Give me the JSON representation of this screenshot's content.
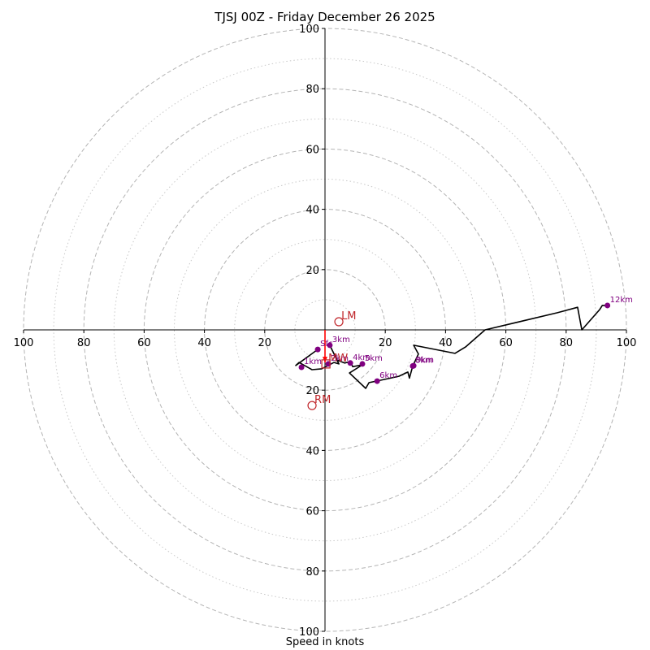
{
  "chart_data": {
    "type": "line",
    "title": "TJSJ 00Z - Friday December 26 2025",
    "xlabel": "Speed in knots",
    "ylabel": "",
    "xlim": [
      -100,
      100
    ],
    "ylim": [
      -100,
      100
    ],
    "grid": true,
    "rings_major": [
      20,
      40,
      60,
      80,
      100
    ],
    "rings_minor": [
      10,
      30,
      50,
      70,
      90
    ],
    "x_tick_labels": [
      "100",
      "80",
      "60",
      "40",
      "20",
      "20",
      "40",
      "60",
      "80",
      "100"
    ],
    "x_tick_values": [
      -100,
      -80,
      -60,
      -40,
      -20,
      20,
      40,
      60,
      80,
      100
    ],
    "y_tick_labels": [
      "100",
      "80",
      "60",
      "40",
      "20",
      "20",
      "40",
      "60",
      "80",
      "100"
    ],
    "y_tick_values": [
      100,
      80,
      60,
      40,
      20,
      -20,
      -40,
      -60,
      -80,
      -100
    ],
    "trace": {
      "name": "hodograph",
      "color": "#000000",
      "points": [
        [
          -2.4,
          -6.5
        ],
        [
          -9.7,
          -11.8
        ],
        [
          -8.6,
          -10.8
        ],
        [
          -4.3,
          -13.2
        ],
        [
          -1.1,
          -12.9
        ],
        [
          3.0,
          -10.8
        ],
        [
          4.6,
          -11.3
        ],
        [
          1.6,
          -5.1
        ],
        [
          4.0,
          -10.0
        ],
        [
          6.5,
          -11.0
        ],
        [
          8.4,
          -10.5
        ],
        [
          9.2,
          -12.2
        ],
        [
          12.4,
          -11.6
        ],
        [
          8.1,
          -14.3
        ],
        [
          13.5,
          -19.4
        ],
        [
          14.6,
          -17.5
        ],
        [
          17.0,
          -17.0
        ],
        [
          24.5,
          -15.4
        ],
        [
          27.5,
          -14.0
        ],
        [
          28.0,
          -16.0
        ],
        [
          29.1,
          -12.0
        ],
        [
          31.0,
          -8.0
        ],
        [
          29.4,
          -5.1
        ],
        [
          43.1,
          -7.8
        ],
        [
          46.6,
          -5.7
        ],
        [
          53.1,
          0.0
        ],
        [
          77.1,
          5.7
        ],
        [
          83.8,
          7.5
        ],
        [
          85.2,
          0.0
        ],
        [
          91.1,
          6.7
        ],
        [
          92.0,
          8.1
        ],
        [
          93.7,
          8.1
        ]
      ]
    },
    "height_markers": [
      {
        "label": "Sfc",
        "u": -2.4,
        "v": -6.5
      },
      {
        "label": "1km",
        "u": -7.8,
        "v": -12.4
      },
      {
        "label": "2km",
        "u": 1.1,
        "v": -11.3
      },
      {
        "label": "3km",
        "u": 1.6,
        "v": -5.1
      },
      {
        "label": "4km",
        "u": 8.4,
        "v": -11.0
      },
      {
        "label": "5km",
        "u": 12.4,
        "v": -11.3
      },
      {
        "label": "6km",
        "u": 17.3,
        "v": -17.0
      },
      {
        "label": "8km",
        "u": 29.1,
        "v": -12.0
      },
      {
        "label": "9km",
        "u": 29.4,
        "v": -11.9
      },
      {
        "label": "12km",
        "u": 93.7,
        "v": 8.1
      }
    ],
    "storm_motion": [
      {
        "label": "LM",
        "u": 4.6,
        "v": 2.7,
        "marker": "circle"
      },
      {
        "label": "RM",
        "u": -4.3,
        "v": -25.1,
        "marker": "circle"
      },
      {
        "label": "MW",
        "u": 0.3,
        "v": -11.3,
        "marker": "square"
      }
    ],
    "shear_vector": {
      "color": "#ff0000",
      "from": [
        0,
        0
      ],
      "to": [
        0,
        -10.8
      ]
    },
    "marker_color": "#800080",
    "storm_color": "#c0262b"
  }
}
